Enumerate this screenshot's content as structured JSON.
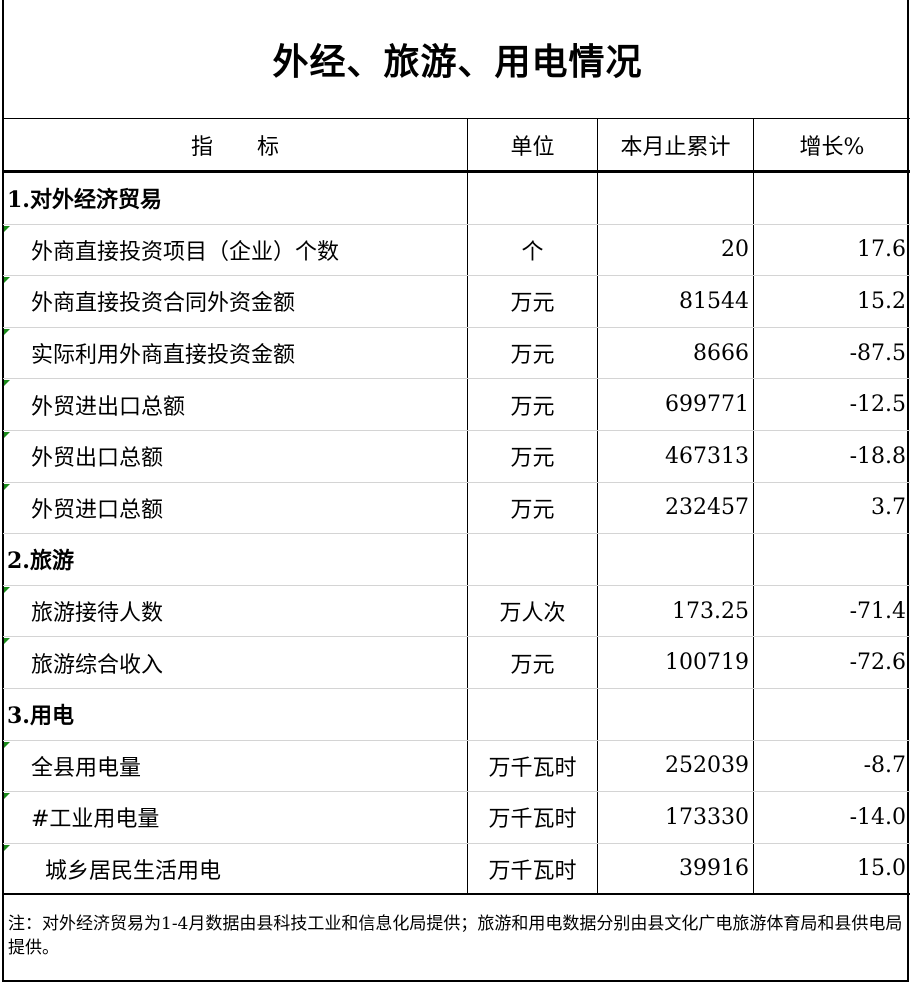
{
  "title": "外经、旅游、用电情况",
  "columns": [
    "指　　标",
    "单位",
    "本月止累计",
    "增长%"
  ],
  "rows": [
    {
      "type": "section",
      "label": "1.对外经济贸易",
      "unit": "",
      "value": "",
      "growth": ""
    },
    {
      "type": "item",
      "label": "外商直接投资项目（企业）个数",
      "unit": "个",
      "value": "20",
      "growth": "17.6"
    },
    {
      "type": "item",
      "label": "外商直接投资合同外资金额",
      "unit": "万元",
      "value": "81544",
      "growth": "15.2"
    },
    {
      "type": "item",
      "label": "实际利用外商直接投资金额",
      "unit": "万元",
      "value": "8666",
      "growth": "-87.5"
    },
    {
      "type": "item",
      "label": "外贸进出口总额",
      "unit": "万元",
      "value": "699771",
      "growth": "-12.5"
    },
    {
      "type": "item",
      "label": "外贸出口总额",
      "unit": "万元",
      "value": "467313",
      "growth": "-18.8"
    },
    {
      "type": "item",
      "label": "外贸进口总额",
      "unit": "万元",
      "value": "232457",
      "growth": "3.7"
    },
    {
      "type": "section",
      "label": "2.旅游",
      "unit": "",
      "value": "",
      "growth": ""
    },
    {
      "type": "item",
      "label": "旅游接待人数",
      "unit": "万人次",
      "value": "173.25",
      "growth": "-71.4"
    },
    {
      "type": "item",
      "label": "旅游综合收入",
      "unit": "万元",
      "value": "100719",
      "growth": "-72.6"
    },
    {
      "type": "section",
      "label": "3.用电",
      "unit": "",
      "value": "",
      "growth": ""
    },
    {
      "type": "item",
      "label": "全县用电量",
      "unit": "万千瓦时",
      "value": "252039",
      "growth": "-8.7"
    },
    {
      "type": "item",
      "label": "#工业用电量",
      "unit": "万千瓦时",
      "value": "173330",
      "growth": "-14.0"
    },
    {
      "type": "sub2",
      "label": "城乡居民生活用电",
      "unit": "万千瓦时",
      "value": "39916",
      "growth": "15.0"
    }
  ],
  "note": "注：对外经济贸易为1-4月数据由县科技工业和信息化局提供；旅游和用电数据分别由县文化广电旅游体育局和县供电局提供。",
  "colors": {
    "indicator_triangle": "#1a8a1a",
    "grid": "#d4d4d4"
  }
}
